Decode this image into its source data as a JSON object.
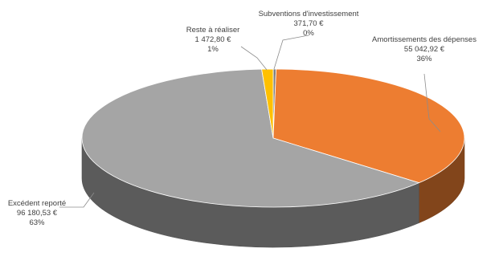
{
  "chart_data": {
    "type": "pie",
    "style": "3d",
    "title": "",
    "legend": "none",
    "slices": [
      {
        "name": "Subventions d'investissement",
        "value_label": "371,70 €",
        "percent_label": "0%",
        "value": 371.7,
        "color": "#7f7f7f"
      },
      {
        "name": "Amortissements des dépenses",
        "value_label": "55 042,92 €",
        "percent_label": "36%",
        "value": 55042.92,
        "color": "#ed7d31"
      },
      {
        "name": "Excédent reporté",
        "value_label": "96 180,53 €",
        "percent_label": "63%",
        "value": 96180.53,
        "color": "#a5a5a5"
      },
      {
        "name": "Reste à réaliser",
        "value_label": "1 472,80 €",
        "percent_label": "1%",
        "value": 1472.8,
        "color": "#ffc000"
      }
    ]
  }
}
